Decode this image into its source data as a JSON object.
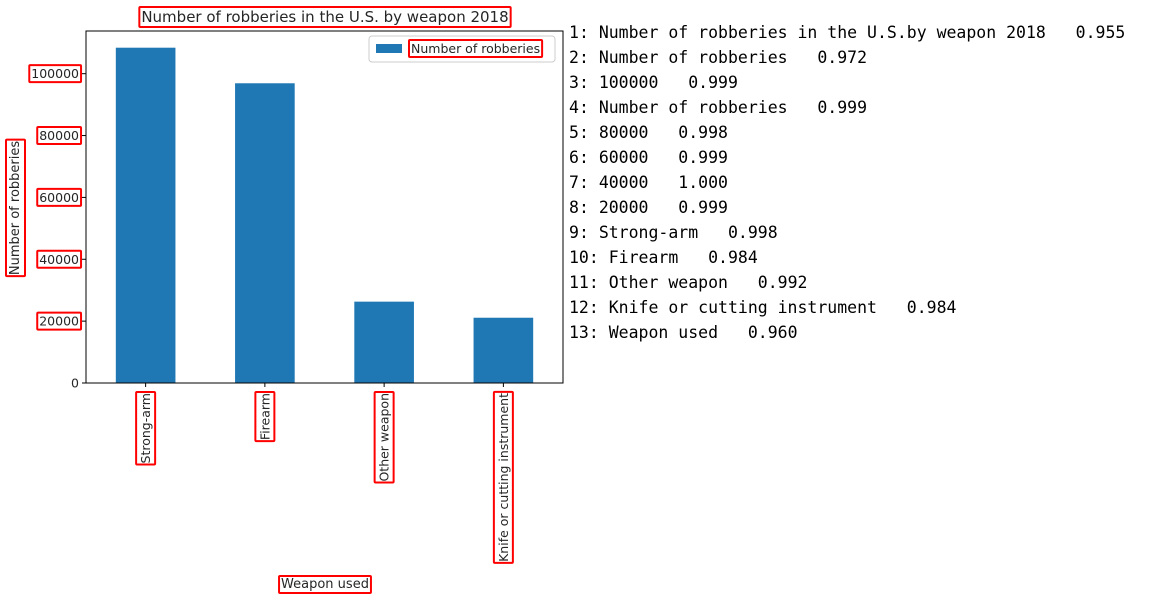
{
  "chart_data": {
    "type": "bar",
    "title": "Number of robberies in the U.S. by weapon 2018",
    "xlabel": "Weapon used",
    "ylabel": "Number of robberies",
    "categories": [
      "Strong-arm",
      "Firearm",
      "Other weapon",
      "Knife or cutting instrument"
    ],
    "series": [
      {
        "name": "Number of robberies",
        "values": [
          108400,
          96900,
          26300,
          21100
        ]
      }
    ],
    "ylim": [
      0,
      113800
    ],
    "yticks": [
      0,
      20000,
      40000,
      60000,
      80000,
      100000
    ],
    "grid": false,
    "legend_position": "top-right",
    "bar_color": "#1f77b4",
    "annotation_color": "#ff0000"
  },
  "ocr_results": [
    {
      "index": "1",
      "text": "Number of robberies in the U.S.by weapon 2018",
      "score": "0.955"
    },
    {
      "index": "2",
      "text": "Number of robberies",
      "score": "0.972"
    },
    {
      "index": "3",
      "text": "100000",
      "score": "0.999"
    },
    {
      "index": "4",
      "text": "Number of robberies",
      "score": "0.999"
    },
    {
      "index": "5",
      "text": "80000",
      "score": "0.998"
    },
    {
      "index": "6",
      "text": "60000",
      "score": "0.999"
    },
    {
      "index": "7",
      "text": "40000",
      "score": "1.000"
    },
    {
      "index": "8",
      "text": "20000",
      "score": "0.999"
    },
    {
      "index": "9",
      "text": "Strong-arm",
      "score": "0.998"
    },
    {
      "index": "10",
      "text": "Firearm",
      "score": "0.984"
    },
    {
      "index": "11",
      "text": "Other weapon",
      "score": "0.992"
    },
    {
      "index": "12",
      "text": "Knife or cutting instrument",
      "score": "0.984"
    },
    {
      "index": "13",
      "text": "Weapon used",
      "score": "0.960"
    }
  ]
}
